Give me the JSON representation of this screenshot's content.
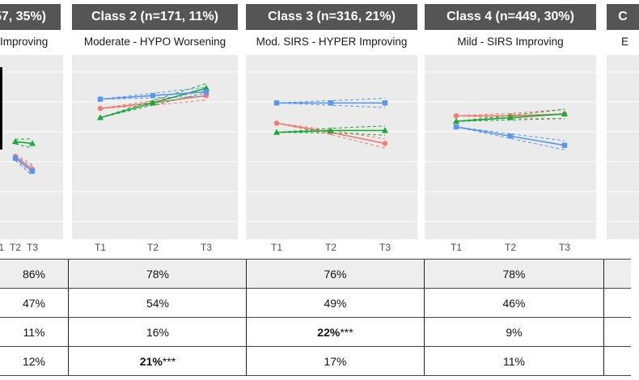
{
  "headers": [
    {
      "text": "57, 35%)"
    },
    {
      "text": "Class 2 (n=171, 11%)"
    },
    {
      "text": "Class 3 (n=316, 21%)"
    },
    {
      "text": "Class 4 (n=449, 30%)"
    },
    {
      "text": "C"
    }
  ],
  "subtitles": [
    {
      "text": "Improving"
    },
    {
      "text": "Moderate - HYPO Worsening"
    },
    {
      "text": "Mod. SIRS - HYPER Improving"
    },
    {
      "text": "Mild - SIRS Improving"
    },
    {
      "text": "E"
    }
  ],
  "x_labels": [
    "T1",
    "T2",
    "T3"
  ],
  "colors": {
    "red": "#f07b72",
    "green": "#1aa837",
    "blue": "#5a96f0",
    "header_bg": "#555555",
    "panel_bg": "#ebebeb"
  },
  "chart_data": [
    {
      "type": "line",
      "panel": "Class 1 (partially visible)",
      "x": [
        "T1",
        "T2",
        "T3"
      ],
      "ylim": [
        0,
        10
      ],
      "series": [
        {
          "color": "red",
          "marker": "circle",
          "values": [
            null,
            4.5,
            3.8
          ]
        },
        {
          "color": "green",
          "marker": "triangle",
          "values": [
            null,
            5.3,
            5.2
          ]
        },
        {
          "color": "blue",
          "marker": "square",
          "values": [
            null,
            4.4,
            3.7
          ]
        }
      ]
    },
    {
      "type": "line",
      "panel": "Class 2",
      "x": [
        "T1",
        "T2",
        "T3"
      ],
      "ylim": [
        0,
        10
      ],
      "series": [
        {
          "color": "red",
          "marker": "circle",
          "values": [
            7.1,
            7.4,
            7.8
          ]
        },
        {
          "color": "green",
          "marker": "triangle",
          "values": [
            6.6,
            7.4,
            8.2
          ]
        },
        {
          "color": "blue",
          "marker": "square",
          "values": [
            7.6,
            7.8,
            8.0
          ]
        }
      ]
    },
    {
      "type": "line",
      "panel": "Class 3",
      "x": [
        "T1",
        "T2",
        "T3"
      ],
      "ylim": [
        0,
        10
      ],
      "series": [
        {
          "color": "red",
          "marker": "circle",
          "values": [
            6.3,
            5.8,
            5.2
          ]
        },
        {
          "color": "green",
          "marker": "triangle",
          "values": [
            5.8,
            5.9,
            5.9
          ]
        },
        {
          "color": "blue",
          "marker": "square",
          "values": [
            7.4,
            7.4,
            7.4
          ]
        }
      ]
    },
    {
      "type": "line",
      "panel": "Class 4",
      "x": [
        "T1",
        "T2",
        "T3"
      ],
      "ylim": [
        0,
        10
      ],
      "series": [
        {
          "color": "red",
          "marker": "circle",
          "values": [
            6.7,
            6.7,
            6.8
          ]
        },
        {
          "color": "green",
          "marker": "triangle",
          "values": [
            6.4,
            6.6,
            6.8
          ]
        },
        {
          "color": "blue",
          "marker": "square",
          "values": [
            6.1,
            5.6,
            5.1
          ]
        }
      ]
    }
  ],
  "table": {
    "rows": [
      [
        {
          "text": "86%"
        },
        {
          "text": "78%"
        },
        {
          "text": "76%"
        },
        {
          "text": "78%"
        },
        {
          "text": ""
        }
      ],
      [
        {
          "text": "47%"
        },
        {
          "text": "54%"
        },
        {
          "text": "49%"
        },
        {
          "text": "46%"
        },
        {
          "text": ""
        }
      ],
      [
        {
          "text": "11%"
        },
        {
          "text": "16%"
        },
        {
          "bold": "22%",
          "suffix": "***"
        },
        {
          "text": "9%"
        },
        {
          "text": ""
        }
      ],
      [
        {
          "text": "12%"
        },
        {
          "bold": "21%",
          "suffix": "***"
        },
        {
          "text": "17%"
        },
        {
          "text": "11%"
        },
        {
          "text": ""
        }
      ]
    ]
  }
}
